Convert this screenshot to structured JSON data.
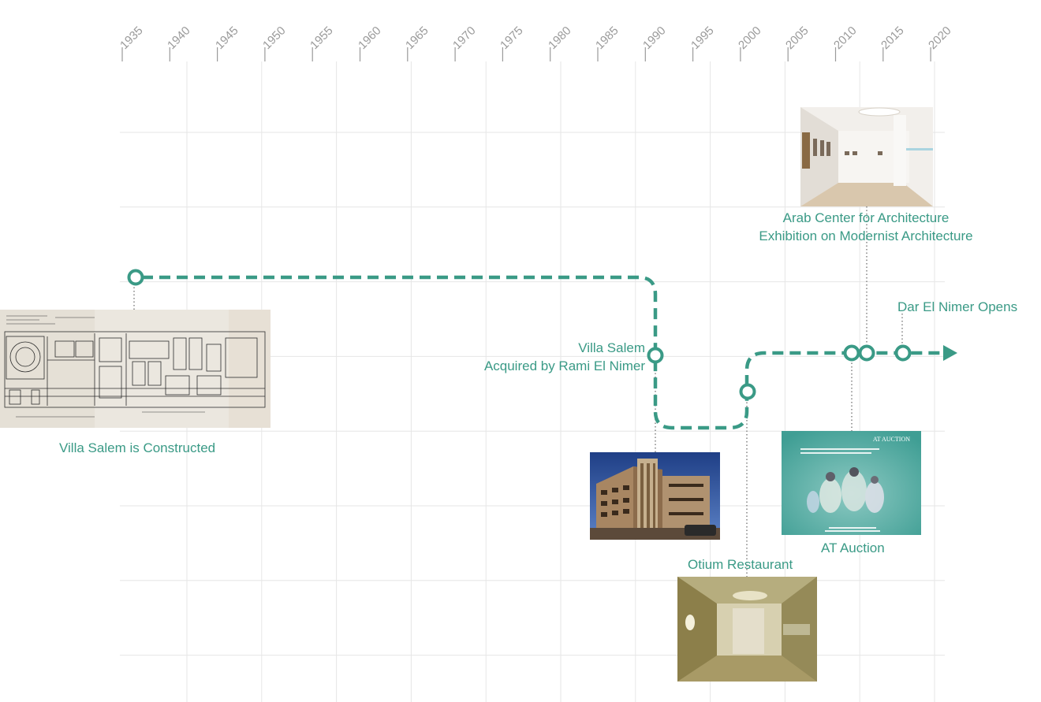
{
  "colors": {
    "accent": "#3a9a86",
    "grid": "#e6e6e6",
    "tick": "#9a9a9a",
    "connector": "#8a8a8a"
  },
  "axis": {
    "years": [
      "1935",
      "1940",
      "1945",
      "1950",
      "1955",
      "1960",
      "1965",
      "1970",
      "1975",
      "1980",
      "1985",
      "1990",
      "1995",
      "2000",
      "2005",
      "2010",
      "2015",
      "2020"
    ]
  },
  "events": {
    "villa_constructed": {
      "label": "Villa Salem is Constructed",
      "year": 1936
    },
    "villa_acquired": {
      "line1": "Villa Salem",
      "line2": "Acquired by Rami El Nimer",
      "year": 1990
    },
    "otium": {
      "label": "Otium Restaurant",
      "year": 2001
    },
    "at_auction": {
      "label": "AT Auction",
      "year": 2010
    },
    "arab_center": {
      "line1": "Arab Center for Architecture",
      "line2": "Exhibition on Modernist Architecture",
      "year": 2011
    },
    "dar_el_nimer": {
      "label": "Dar El Nimer Opens",
      "year": 2016
    }
  },
  "images": {
    "blueprint": "blueprint-icon",
    "building": "building-photo-icon",
    "gallery": "gallery-interior-icon",
    "auction": {
      "title": "AT AUCTION"
    },
    "restaurant": "restaurant-interior-icon"
  }
}
